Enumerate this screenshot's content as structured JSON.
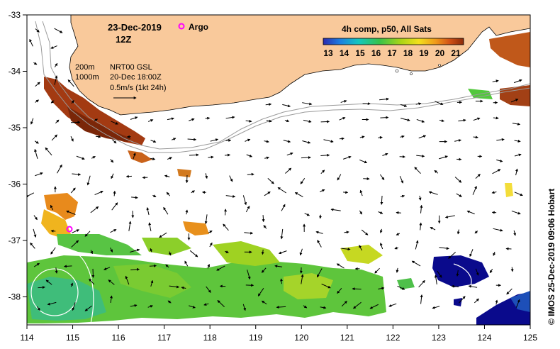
{
  "header": {
    "date": "23-Dec-2019",
    "time": "12Z",
    "argo_label": "Argo"
  },
  "legend_info": {
    "depth_200": "200m",
    "depth_1000": "1000m",
    "product": "NRT00 GSL",
    "product_time": "20-Dec 18:00Z",
    "arrow_scale": "0.5m/s (1kt 24h)"
  },
  "colorbar": {
    "title": "4h comp, p50, All Sats",
    "ticks": [
      "13",
      "14",
      "15",
      "16",
      "17",
      "18",
      "19",
      "20",
      "21"
    ]
  },
  "axes": {
    "x_ticks": [
      "114",
      "115",
      "116",
      "117",
      "118",
      "119",
      "120",
      "121",
      "122",
      "123",
      "124",
      "125"
    ],
    "y_ticks": [
      "-33",
      "-34",
      "-35",
      "-36",
      "-37",
      "-38"
    ]
  },
  "credit": "© IMOS 25-Dec-2019 09:06 Hobart",
  "colors": {
    "land": "#f9c99b",
    "cold": "#0a0a8c",
    "warm": "#8a2a0a",
    "argo": "#ff00ff"
  }
}
